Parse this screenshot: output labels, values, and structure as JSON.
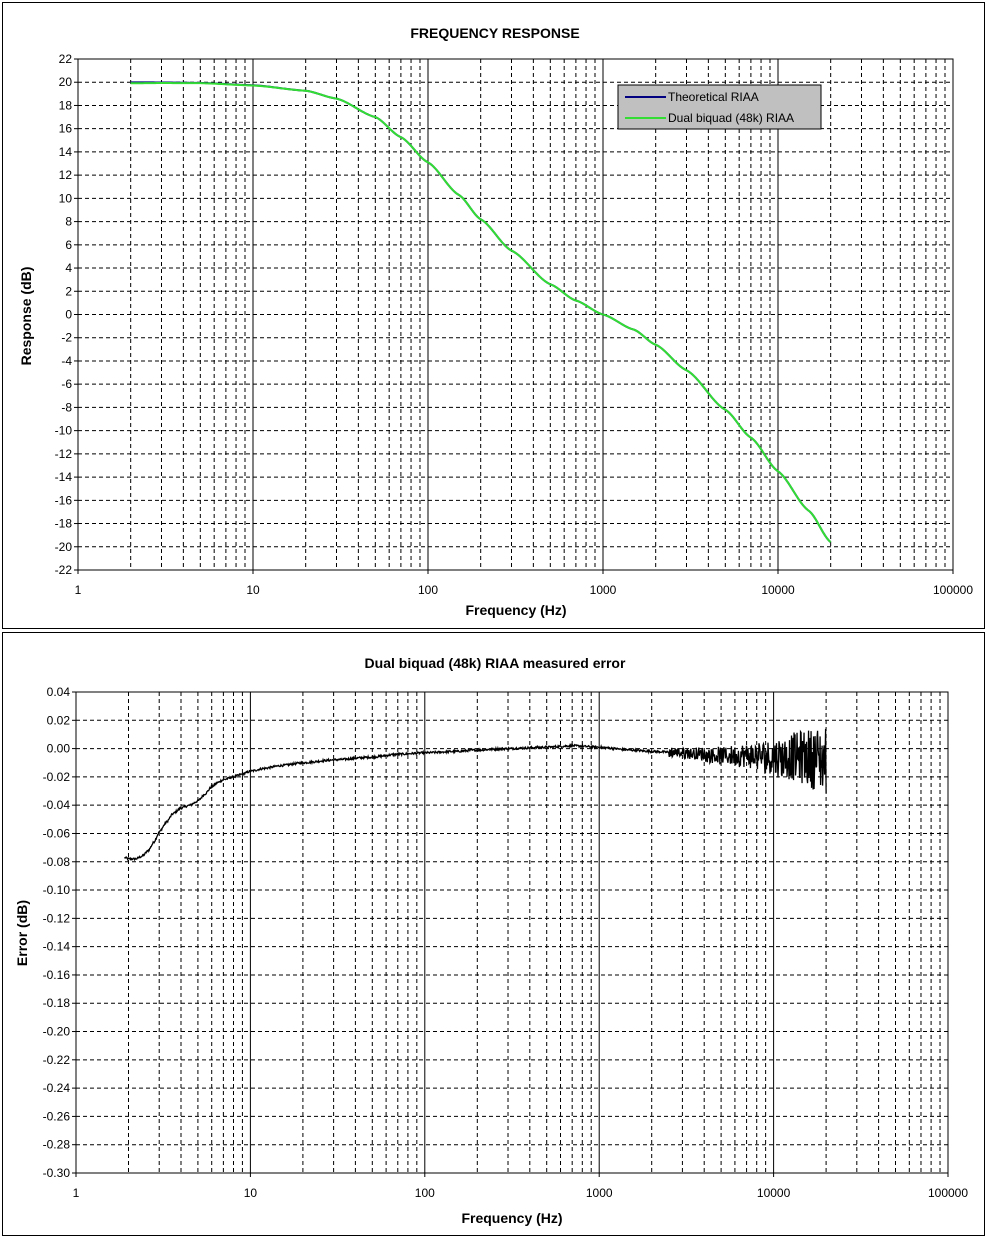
{
  "chart_data": [
    {
      "type": "line",
      "title": "FREQUENCY RESPONSE",
      "xlabel": "Frequency (Hz)",
      "ylabel": "Response (dB)",
      "x_scale": "log",
      "xlim": [
        1,
        100000
      ],
      "ylim": [
        -22,
        22
      ],
      "x_ticks": [
        "1",
        "10",
        "100",
        "1000",
        "10000",
        "100000"
      ],
      "y_ticks": [
        "22",
        "20",
        "18",
        "16",
        "14",
        "12",
        "10",
        "8",
        "6",
        "4",
        "2",
        "0",
        "-2",
        "-4",
        "-6",
        "-8",
        "-10",
        "-12",
        "-14",
        "-16",
        "-18",
        "-20",
        "-22"
      ],
      "grid": true,
      "legend_position": "top-right",
      "series": [
        {
          "name": "Theoretical RIAA",
          "color": "#000080",
          "x": [
            2,
            3,
            5,
            10,
            20,
            30,
            50,
            70,
            100,
            150,
            200,
            300,
            500,
            700,
            1000,
            1500,
            2000,
            3000,
            5000,
            7000,
            10000,
            15000,
            20000
          ],
          "y": [
            19.99,
            19.98,
            19.94,
            19.74,
            19.27,
            18.59,
            17.0,
            15.27,
            13.1,
            10.3,
            8.2,
            5.5,
            2.6,
            1.2,
            0.0,
            -1.3,
            -2.6,
            -4.8,
            -8.2,
            -10.6,
            -13.5,
            -16.9,
            -19.6
          ]
        },
        {
          "name": "Dual biquad (48k) RIAA",
          "color": "#33dd33",
          "x": [
            2,
            3,
            5,
            10,
            20,
            30,
            50,
            70,
            100,
            150,
            200,
            300,
            500,
            700,
            1000,
            1500,
            2000,
            3000,
            5000,
            7000,
            10000,
            15000,
            20000
          ],
          "y": [
            19.91,
            19.93,
            19.92,
            19.72,
            19.27,
            18.59,
            17.0,
            15.27,
            13.1,
            10.3,
            8.2,
            5.5,
            2.6,
            1.2,
            0.0,
            -1.3,
            -2.6,
            -4.8,
            -8.2,
            -10.6,
            -13.5,
            -16.9,
            -19.6
          ]
        }
      ]
    },
    {
      "type": "line",
      "title": "Dual biquad (48k) RIAA measured error",
      "xlabel": "Frequency (Hz)",
      "ylabel": "Error (dB)",
      "x_scale": "log",
      "xlim": [
        1,
        100000
      ],
      "ylim": [
        -0.3,
        0.04
      ],
      "x_ticks": [
        "1",
        "10",
        "100",
        "1000",
        "10000",
        "100000"
      ],
      "y_ticks": [
        "0.04",
        "0.02",
        "0.00",
        "-0.02",
        "-0.04",
        "-0.06",
        "-0.08",
        "-0.10",
        "-0.12",
        "-0.14",
        "-0.16",
        "-0.18",
        "-0.20",
        "-0.22",
        "-0.24",
        "-0.26",
        "-0.28",
        "-0.30"
      ],
      "grid": true,
      "series": [
        {
          "color": "#000000",
          "x": [
            1.9,
            2.0,
            2.2,
            2.4,
            2.6,
            2.8,
            3.0,
            3.3,
            3.6,
            4.0,
            4.5,
            5.0,
            5.5,
            6.0,
            6.5,
            7.0,
            8.0,
            9.0,
            10,
            12,
            15,
            20,
            30,
            50,
            70,
            100,
            150,
            200,
            300,
            500,
            700,
            1000,
            1500,
            2000,
            3000,
            5000,
            7000,
            10000,
            15000,
            20000
          ],
          "y": [
            -0.077,
            -0.078,
            -0.078,
            -0.076,
            -0.072,
            -0.066,
            -0.059,
            -0.052,
            -0.046,
            -0.042,
            -0.04,
            -0.037,
            -0.032,
            -0.027,
            -0.024,
            -0.022,
            -0.02,
            -0.018,
            -0.016,
            -0.014,
            -0.012,
            -0.01,
            -0.008,
            -0.006,
            -0.004,
            -0.003,
            -0.002,
            -0.001,
            0.0,
            0.001,
            0.002,
            0.001,
            -0.001,
            -0.002,
            -0.003,
            -0.005,
            -0.005,
            -0.006,
            -0.006,
            -0.008
          ],
          "noise_from_x": 2500,
          "noise_peak": 0.025
        }
      ]
    }
  ]
}
